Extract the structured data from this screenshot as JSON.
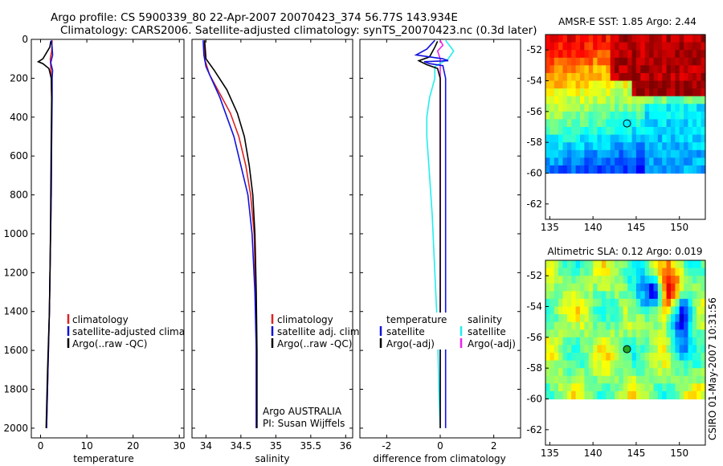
{
  "figure": {
    "title_line1": "Argo profile: CS 5900339_80 22-Apr-2007 20070423_374 56.77S 143.934E",
    "title_line2": "Climatology: CARS2006. Satellite-adjusted climatology: synTS_20070423.nc (0.3d later)",
    "side_stamp": "CSIRO 01-May-2007 10:31:56",
    "colors": {
      "red": "#dd2222",
      "blue": "#1111dd",
      "black": "#000000",
      "cyan": "#22eeee",
      "magenta": "#ee22ee"
    }
  },
  "chart_data": [
    {
      "type": "line",
      "name": "temperature-profile",
      "xlabel": "temperature",
      "ylabel": "",
      "xlim": [
        -2,
        31
      ],
      "ylim": [
        2050,
        0
      ],
      "xticks": [
        0,
        10,
        20,
        30
      ],
      "yticks": [
        0,
        200,
        400,
        600,
        800,
        1000,
        1200,
        1400,
        1600,
        1800,
        2000
      ],
      "legend": {
        "placement": "lower-left",
        "entries": [
          {
            "color": "red",
            "label": "climatology"
          },
          {
            "color": "blue",
            "label": "satellite-adjusted climatology"
          },
          {
            "color": "black",
            "label": "Argo(..raw -QC)"
          }
        ]
      },
      "series": [
        {
          "name": "climatology",
          "color": "red",
          "points": [
            [
              2.5,
              5
            ],
            [
              2.4,
              60
            ],
            [
              2.1,
              100
            ],
            [
              2.2,
              140
            ],
            [
              2.3,
              200
            ],
            [
              2.4,
              300
            ],
            [
              2.4,
              500
            ],
            [
              2.3,
              800
            ],
            [
              2.1,
              1100
            ],
            [
              1.9,
              1400
            ],
            [
              1.6,
              1700
            ],
            [
              1.3,
              2000
            ]
          ]
        },
        {
          "name": "satellite-adjusted climatology",
          "color": "blue",
          "points": [
            [
              2.3,
              5
            ],
            [
              2.5,
              40
            ],
            [
              2.6,
              80
            ],
            [
              2.2,
              120
            ],
            [
              2.6,
              160
            ],
            [
              2.5,
              200
            ],
            [
              2.5,
              300
            ],
            [
              2.4,
              500
            ],
            [
              2.3,
              800
            ],
            [
              2.1,
              1100
            ],
            [
              1.9,
              1400
            ],
            [
              1.6,
              1700
            ],
            [
              1.3,
              2000
            ]
          ]
        },
        {
          "name": "Argo(..raw -QC)",
          "color": "black",
          "points": [
            [
              2.2,
              10
            ],
            [
              2.0,
              40
            ],
            [
              0.5,
              100
            ],
            [
              -0.5,
              115
            ],
            [
              0.5,
              125
            ],
            [
              1.8,
              150
            ],
            [
              2.3,
              200
            ],
            [
              2.4,
              300
            ],
            [
              2.3,
              500
            ],
            [
              2.2,
              800
            ],
            [
              2.1,
              1100
            ],
            [
              1.9,
              1400
            ],
            [
              1.5,
              1700
            ],
            [
              1.2,
              2000
            ]
          ]
        }
      ]
    },
    {
      "type": "line",
      "name": "salinity-profile",
      "xlabel": "salinity",
      "ylabel": "",
      "xlim": [
        33.8,
        36.1
      ],
      "ylim": [
        2050,
        0
      ],
      "xticks": [
        34,
        34.5,
        35,
        35.5,
        36
      ],
      "xticklabels": [
        "34",
        "34.5",
        "35",
        "35.5",
        "36"
      ],
      "yticks": [
        0,
        200,
        400,
        600,
        800,
        1000,
        1200,
        1400,
        1600,
        1800,
        2000
      ],
      "annotations": [
        "Argo AUSTRALIA",
        "PI: Susan Wijffels"
      ],
      "legend": {
        "placement": "lower-left",
        "entries": [
          {
            "color": "red",
            "label": "climatology"
          },
          {
            "color": "blue",
            "label": "satellite adj. clim."
          },
          {
            "color": "black",
            "label": "Argo(..raw -QC)"
          }
        ]
      },
      "series": [
        {
          "name": "climatology",
          "color": "red",
          "points": [
            [
              33.98,
              5
            ],
            [
              33.98,
              100
            ],
            [
              34.05,
              180
            ],
            [
              34.2,
              280
            ],
            [
              34.35,
              380
            ],
            [
              34.47,
              500
            ],
            [
              34.57,
              650
            ],
            [
              34.64,
              800
            ],
            [
              34.69,
              1000
            ],
            [
              34.71,
              1300
            ],
            [
              34.72,
              1600
            ],
            [
              34.72,
              2000
            ]
          ]
        },
        {
          "name": "satellite adj. clim.",
          "color": "blue",
          "points": [
            [
              33.96,
              5
            ],
            [
              33.97,
              80
            ],
            [
              34.0,
              140
            ],
            [
              34.1,
              220
            ],
            [
              34.2,
              300
            ],
            [
              34.3,
              400
            ],
            [
              34.4,
              500
            ],
            [
              34.5,
              650
            ],
            [
              34.6,
              800
            ],
            [
              34.66,
              1000
            ],
            [
              34.7,
              1300
            ],
            [
              34.72,
              1600
            ],
            [
              34.72,
              2000
            ]
          ]
        },
        {
          "name": "Argo(..raw -QC)",
          "color": "black",
          "points": [
            [
              33.98,
              5
            ],
            [
              34.0,
              100
            ],
            [
              34.12,
              160
            ],
            [
              34.3,
              260
            ],
            [
              34.45,
              380
            ],
            [
              34.55,
              500
            ],
            [
              34.62,
              650
            ],
            [
              34.67,
              800
            ],
            [
              34.7,
              1000
            ],
            [
              34.72,
              1300
            ],
            [
              34.73,
              1600
            ],
            [
              34.73,
              2000
            ]
          ]
        }
      ]
    },
    {
      "type": "line",
      "name": "difference-profile",
      "xlabel": "difference from climatology",
      "ylabel": "",
      "xlim": [
        -3,
        3
      ],
      "ylim": [
        2050,
        0
      ],
      "xticks": [
        -2,
        0,
        2
      ],
      "yticks": [
        0,
        200,
        400,
        600,
        800,
        1000,
        1200,
        1400,
        1600,
        1800,
        2000
      ],
      "legend": {
        "placement": "lower-center",
        "groups": [
          {
            "title": "temperature",
            "entries": [
              {
                "color": "blue",
                "label": "satellite"
              },
              {
                "color": "black",
                "label": "Argo(-adj)"
              }
            ]
          },
          {
            "title": "salinity",
            "entries": [
              {
                "color": "cyan",
                "label": "satellite"
              },
              {
                "color": "magenta",
                "label": "Argo(-adj)"
              }
            ]
          }
        ]
      },
      "series": [
        {
          "name": "temperature satellite",
          "color": "blue",
          "points": [
            [
              -0.2,
              5
            ],
            [
              -0.5,
              50
            ],
            [
              -0.9,
              80
            ],
            [
              0.1,
              100
            ],
            [
              0.3,
              110
            ],
            [
              -0.6,
              115
            ],
            [
              -0.4,
              125
            ],
            [
              0.1,
              135
            ],
            [
              0.2,
              200
            ],
            [
              0.2,
              400
            ],
            [
              0.2,
              800
            ],
            [
              0.2,
              1200
            ],
            [
              0.2,
              1600
            ],
            [
              0.2,
              2000
            ]
          ]
        },
        {
          "name": "temperature Argo(-adj)",
          "color": "black",
          "points": [
            [
              -0.1,
              10
            ],
            [
              -0.2,
              40
            ],
            [
              -0.4,
              90
            ],
            [
              -0.8,
              110
            ],
            [
              -0.5,
              130
            ],
            [
              -0.1,
              150
            ],
            [
              0.0,
              200
            ],
            [
              0.0,
              400
            ],
            [
              0.0,
              800
            ],
            [
              0.0,
              1200
            ],
            [
              0.0,
              1600
            ],
            [
              0.0,
              2000
            ]
          ]
        },
        {
          "name": "salinity satellite",
          "color": "cyan",
          "points": [
            [
              0.2,
              5
            ],
            [
              0.5,
              60
            ],
            [
              0.3,
              100
            ],
            [
              -0.2,
              140
            ],
            [
              -0.2,
              200
            ],
            [
              -0.4,
              300
            ],
            [
              -0.5,
              400
            ],
            [
              -0.5,
              500
            ],
            [
              -0.4,
              700
            ],
            [
              -0.3,
              900
            ],
            [
              -0.2,
              1200
            ],
            [
              -0.1,
              1500
            ],
            [
              -0.05,
              1800
            ],
            [
              0.0,
              2000
            ]
          ]
        },
        {
          "name": "salinity Argo(-adj)",
          "color": "magenta",
          "points": [
            [
              0.0,
              5
            ],
            [
              0.1,
              30
            ],
            [
              -0.1,
              60
            ],
            [
              0.0,
              100
            ],
            [
              0.0,
              200
            ],
            [
              0.0,
              400
            ],
            [
              0.0,
              800
            ],
            [
              0.0,
              1200
            ],
            [
              0.0,
              1600
            ],
            [
              0.0,
              2000
            ]
          ]
        }
      ]
    },
    {
      "type": "heatmap",
      "name": "amsre-sst-map",
      "title": "AMSR-E SST: 1.85 Argo: 2.44",
      "xlim": [
        134.5,
        153
      ],
      "ylim": [
        -63,
        -51
      ],
      "xticks": [
        135,
        140,
        145,
        150
      ],
      "yticks": [
        -52,
        -54,
        -56,
        -58,
        -60,
        -62
      ],
      "xticklabels": [
        "135",
        "140",
        "145",
        "150"
      ],
      "yticklabels": [
        "-52",
        "-54",
        "-56",
        "-58",
        "-60",
        "-62"
      ],
      "data_extent_lat_min": -60,
      "marker": {
        "lon": 143.934,
        "lat": -56.77
      }
    },
    {
      "type": "heatmap",
      "name": "altimetric-sla-map",
      "title": "Altimetric SLA: 0.12 Argo: 0.019",
      "xlim": [
        134.5,
        153
      ],
      "ylim": [
        -63,
        -51
      ],
      "xticks": [
        135,
        140,
        145,
        150
      ],
      "yticks": [
        -52,
        -54,
        -56,
        -58,
        -60,
        -62
      ],
      "xticklabels": [
        "135",
        "140",
        "145",
        "150"
      ],
      "yticklabels": [
        "-52",
        "-54",
        "-56",
        "-58",
        "-60",
        "-62"
      ],
      "data_extent_lat_min": -60,
      "marker": {
        "lon": 143.934,
        "lat": -56.77
      }
    }
  ]
}
